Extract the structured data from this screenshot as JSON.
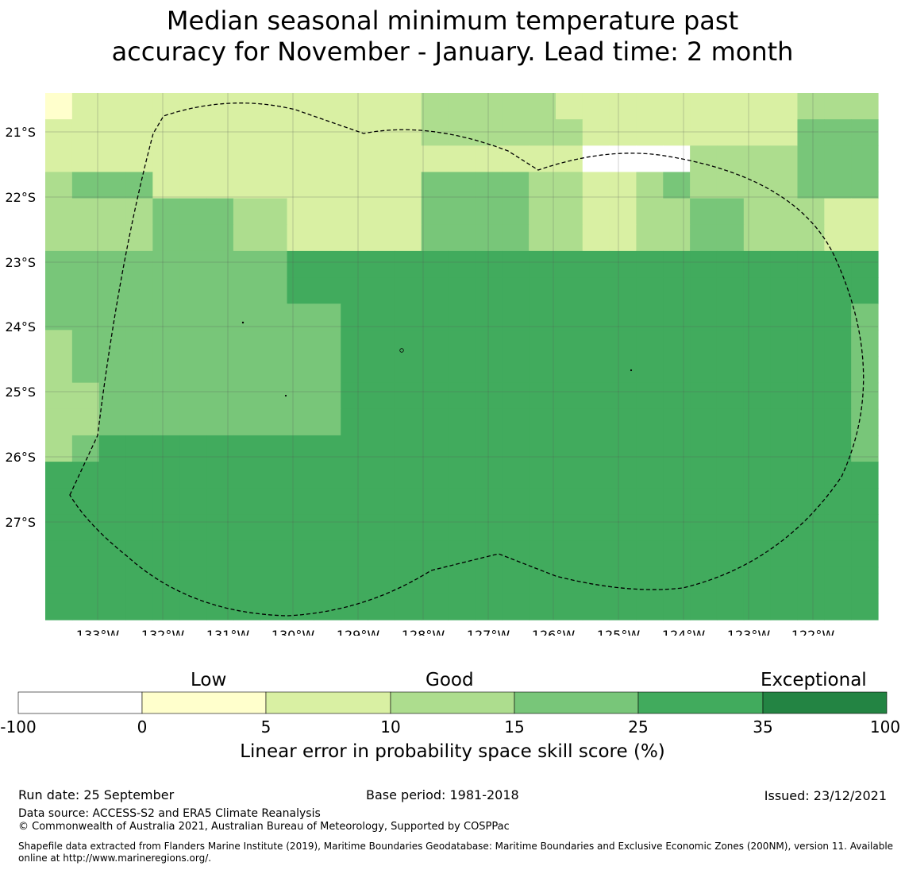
{
  "title": {
    "line1": "Median seasonal minimum temperature past",
    "line2": "accuracy for November - January. Lead time: 2 month"
  },
  "map": {
    "lat_labels": [
      "21°S",
      "22°S",
      "23°S",
      "24°S",
      "25°S",
      "26°S",
      "27°S"
    ],
    "lon_labels": [
      "133°W",
      "132°W",
      "131°W",
      "130°W",
      "129°W",
      "128°W",
      "127°W",
      "126°W",
      "125°W",
      "124°W",
      "123°W",
      "122°W"
    ],
    "grid": [
      "1222222222222233333222222222333",
      "2222222222222233333322222222444",
      "2222222222222222222200003333444",
      "3444222222222244443322343333444",
      "3333444332222244443322334433322",
      "3333444332222244443322334433322",
      "4444444445555555555555555555555",
      "4444444445555555555555555555555",
      "4444444444455555555555555555554",
      "3444444444455555555555555555554",
      "3444444444455555555555555555554",
      "3344444444455555555555555555554",
      "3344444444455555555555555555554",
      "3455555555555555555555555555554",
      "5555555555555555555555555555555",
      "5555555555555555555555555555555",
      "5555555555555555555555555555555",
      "5555555555555555555555555555555",
      "5555555555555555555555555555555",
      "5555555555555555555555555555555"
    ]
  },
  "colorbar": {
    "words": [
      "Low",
      "Good",
      "Exceptional"
    ],
    "ticks": [
      "-100",
      "0",
      "5",
      "10",
      "15",
      "25",
      "35",
      "100"
    ],
    "colors": [
      "#ffffff",
      "#ffffcc",
      "#d9f0a3",
      "#addd8e",
      "#78c679",
      "#41ab5d",
      "#238443"
    ],
    "label": "Linear error in probability space skill score (%)"
  },
  "footer": {
    "run_date": "Run date: 25 September",
    "base_period": "Base period: 1981-2018",
    "issued": "Issued: 23/12/2021",
    "data_source": "Data source: ACCESS-S2 and ERA5 Climate Reanalysis",
    "copyright": "© Commonwealth of Australia 2021, Australian Bureau of Meteorology, Supported by COSPPac",
    "shapefile_line1": "Shapefile data extracted from Flanders Marine Institute (2019), Maritime Boundaries Geodatabase: Maritime Boundaries and Exclusive Economic Zones (200NM), version 11. Available",
    "shapefile_line2": "online at http://www.marineregions.org/."
  }
}
